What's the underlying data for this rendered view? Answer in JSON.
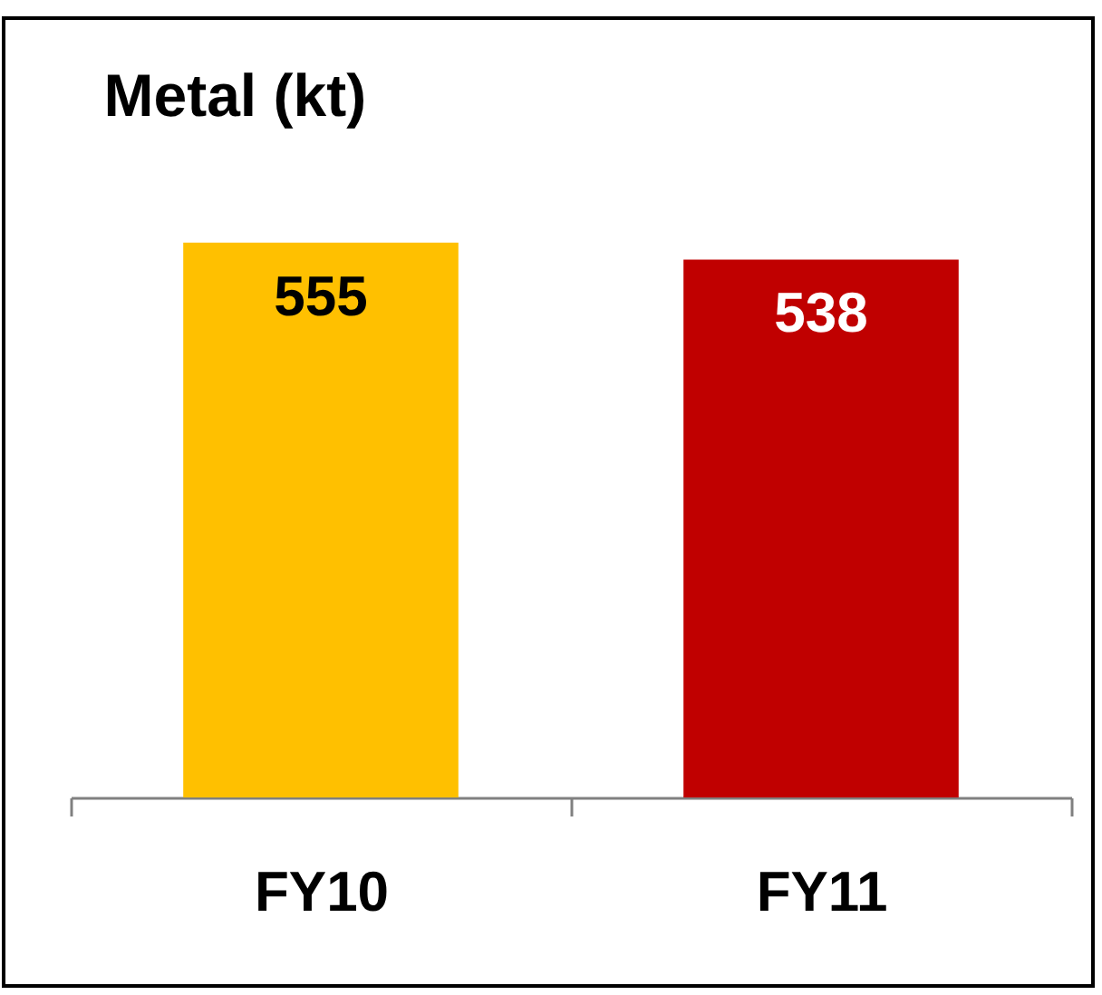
{
  "chart_data": {
    "type": "bar",
    "title": "Metal (kt)",
    "categories": [
      "FY10",
      "FY11"
    ],
    "values": [
      555,
      538
    ],
    "colors": [
      "#ffc000",
      "#c00000"
    ],
    "data_labels": true
  }
}
